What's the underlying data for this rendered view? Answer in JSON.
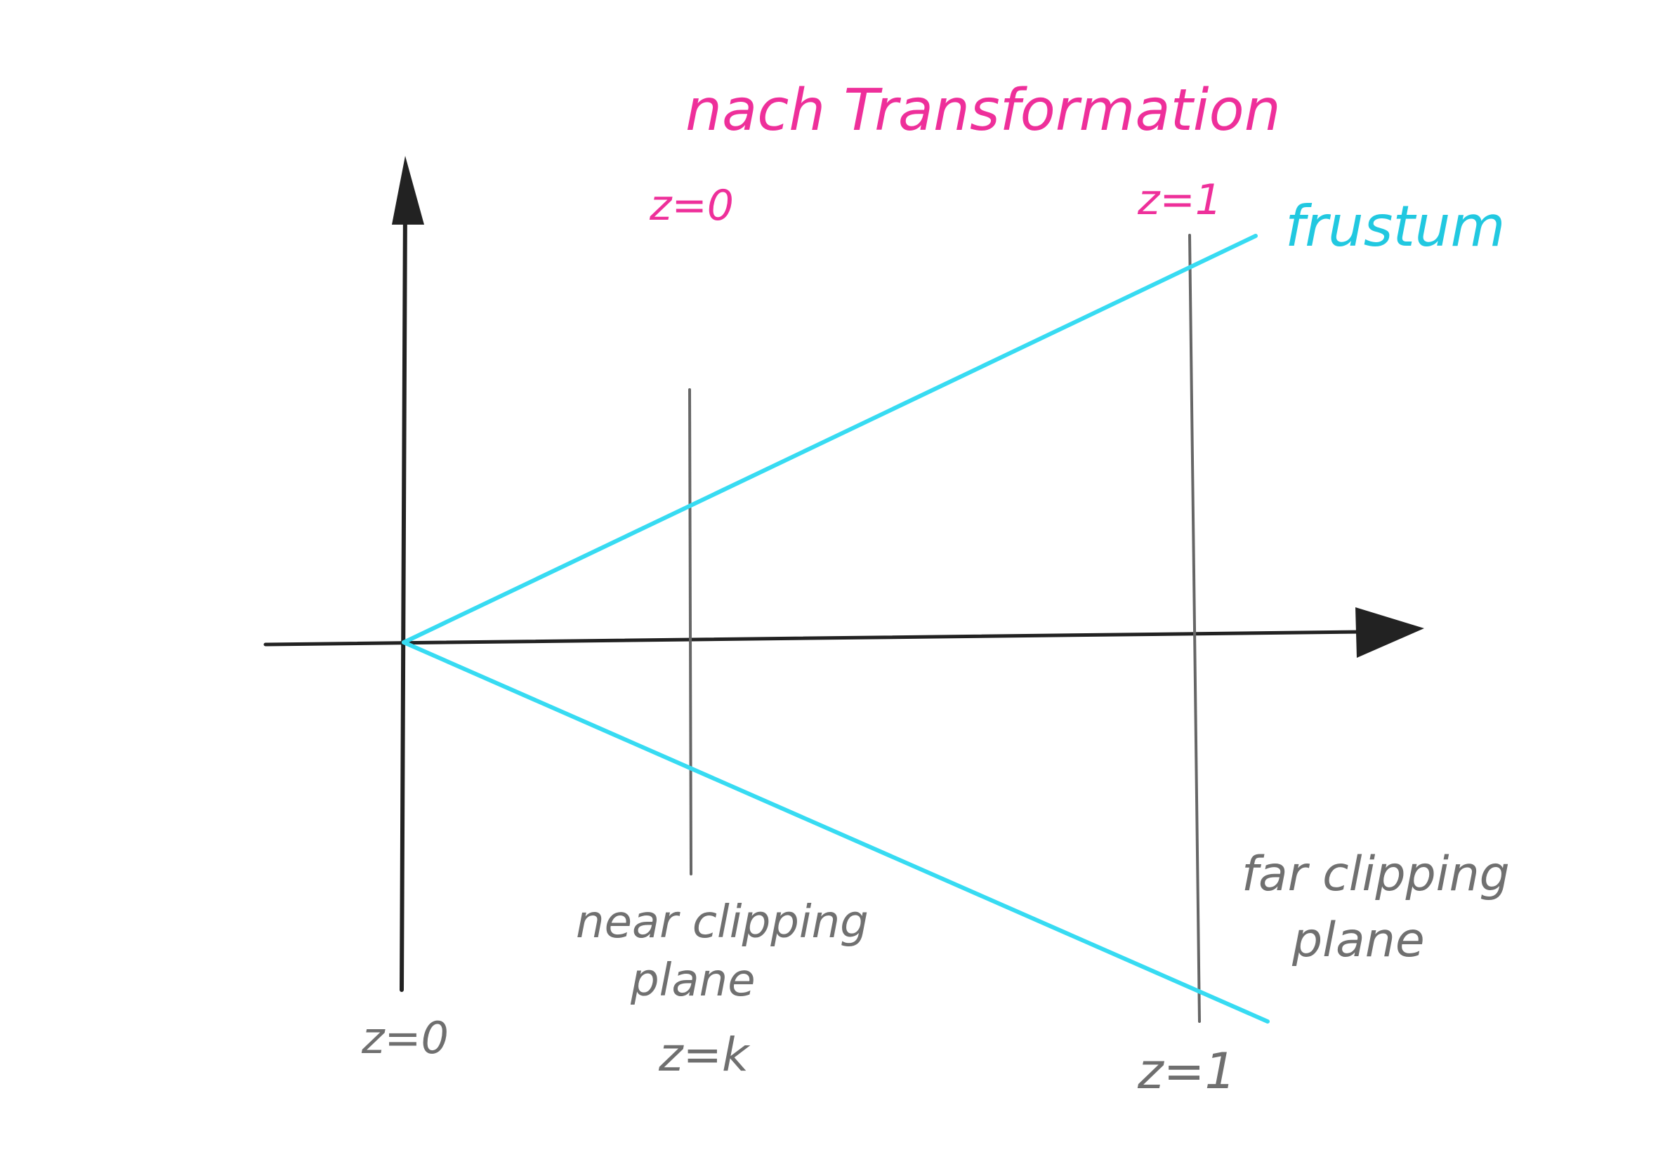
{
  "diagram": {
    "title": "nach Transformation",
    "frustum_label": "frustum",
    "top_labels": {
      "near": "z=0",
      "far": "z=1"
    },
    "bottom_labels": {
      "origin": "z=0",
      "near": "z=k",
      "far": "z=1"
    },
    "plane_labels": {
      "near_line1": "near clipping",
      "near_line2": "plane",
      "far_line1": "far clipping",
      "far_line2": "plane"
    },
    "colors": {
      "title": "#ee2f9a",
      "frustum": "#37dbf2",
      "planes": "#666666",
      "axes": "#222222"
    }
  }
}
